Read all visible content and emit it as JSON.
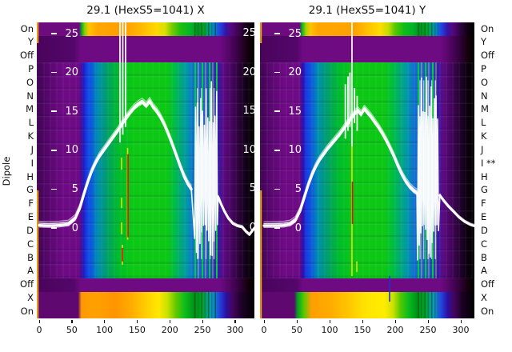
{
  "figure": {
    "titles": {
      "left": "29.1 (HexS5=1041) X",
      "right": "29.1 (HexS5=1041) Y"
    },
    "y_axis_label": "Dipole",
    "row_labels_left": [
      "On",
      "Y",
      "Off",
      "P",
      "O",
      "N",
      "M",
      "L",
      "K",
      "J",
      "I",
      "H",
      "G",
      "F",
      "E",
      "D",
      "C",
      "B",
      "A",
      "Off",
      "X",
      "On"
    ],
    "row_labels_right": [
      "On",
      "Y",
      "Off",
      "P",
      "O",
      "N",
      "M",
      "L",
      "K",
      "J",
      "I **",
      "H",
      "G",
      "F",
      "E",
      "D",
      "C",
      "B",
      "A",
      "Off",
      "X",
      "On"
    ],
    "x_tick_labels": [
      "0",
      "50",
      "100",
      "150",
      "200",
      "250",
      "300"
    ],
    "value_tick_labels": [
      "25",
      "20",
      "15",
      "10",
      "5",
      "0"
    ]
  },
  "colors": {
    "background": "#ffffff",
    "purple": "#6E0A84",
    "dark_purple": "#4A0560",
    "blue": "#1440E8",
    "teal": "#009898",
    "green": "#0CC814",
    "yellow": "#FFE000",
    "orange": "#FFA500",
    "curve_white": "#ffffff",
    "marker_red": "#DD1100",
    "marker_yellow": "#E8E000",
    "marker_blue": "#2233CC",
    "edge_line_orange": "#FFB400"
  },
  "chart_data": {
    "type": "heatmap",
    "x_range": [
      0,
      330
    ],
    "value_axis_ticks": [
      25,
      20,
      15,
      10,
      5,
      0
    ],
    "rows": [
      "On",
      "Y",
      "Off",
      "P",
      "O",
      "N",
      "M",
      "L",
      "K",
      "J",
      "I",
      "H",
      "G",
      "F",
      "E",
      "D",
      "C",
      "B",
      "A",
      "Off",
      "X",
      "On"
    ],
    "panels": [
      {
        "name": "X",
        "profile_x": [
          0,
          15,
          30,
          45,
          55,
          62,
          68,
          74,
          80,
          86,
          92,
          98,
          104,
          110,
          116,
          122,
          128,
          134,
          140,
          146,
          152,
          158,
          164,
          169,
          174,
          180,
          186,
          192,
          198,
          204,
          210,
          216,
          222,
          228,
          233
        ],
        "profile_v": [
          0.35,
          0.3,
          0.35,
          0.5,
          1.2,
          2.5,
          4.2,
          5.8,
          7.2,
          8.3,
          9.2,
          9.9,
          10.6,
          11.3,
          12.0,
          12.7,
          13.5,
          14.2,
          14.9,
          15.5,
          15.9,
          16.2,
          15.7,
          16.3,
          15.6,
          15.0,
          14.2,
          13.2,
          12.0,
          10.7,
          9.3,
          7.9,
          6.6,
          5.6,
          5.0
        ],
        "tail_x": [
          274,
          279,
          284,
          290,
          297,
          304,
          311,
          317,
          322,
          327,
          330
        ],
        "tail_v": [
          4.0,
          3.0,
          2.1,
          1.2,
          0.55,
          0.25,
          0.1,
          -0.5,
          -0.85,
          -0.3,
          0.0
        ],
        "spikes": [
          {
            "x": 123.7,
            "v": [
              11,
              27
            ]
          },
          {
            "x": 128,
            "v": [
              12,
              27
            ]
          },
          {
            "x": 132.3,
            "v": [
              13,
              27
            ]
          }
        ],
        "burst": {
          "x_range": [
            238,
            273
          ],
          "v_low": -4.5,
          "v_high": 19
        },
        "markers": [
          {
            "color": "#E8E000",
            "x": 135.4,
            "v": [
              -1.5,
              10.3
            ]
          },
          {
            "color": "#DD1100",
            "x": 136.0,
            "v": [
              -1.2,
              9.5
            ]
          },
          {
            "color": "#E8E000",
            "x": 126.2,
            "v": [
              7.5,
              9.05
            ]
          },
          {
            "color": "#E8E000",
            "x": 126.2,
            "v": [
              2.57,
              3.9
            ]
          },
          {
            "color": "#E8E000",
            "x": 126.2,
            "v": [
              -0.8,
              0.72
            ]
          },
          {
            "color": "#E8E000",
            "x": 127.4,
            "v": [
              -4.73,
              -2.16
            ]
          },
          {
            "color": "#DD1100",
            "x": 127.4,
            "v": [
              -4.3,
              -2.57
            ]
          }
        ]
      },
      {
        "name": "Y",
        "profile_x": [
          0,
          15,
          30,
          40,
          48,
          55,
          61,
          67,
          73,
          79,
          85,
          91,
          97,
          103,
          109,
          115,
          121,
          127,
          133,
          138,
          143,
          148,
          153,
          158,
          163,
          168,
          174,
          180,
          186,
          192,
          198,
          204,
          210,
          216,
          222,
          228,
          233
        ],
        "profile_v": [
          0.3,
          0.3,
          0.35,
          0.5,
          1.0,
          2.2,
          3.8,
          5.4,
          6.8,
          7.9,
          8.8,
          9.5,
          10.2,
          10.8,
          11.4,
          12.0,
          12.7,
          13.4,
          14.1,
          14.7,
          15.1,
          14.6,
          15.3,
          14.8,
          14.3,
          13.7,
          13.0,
          12.2,
          11.3,
          10.3,
          9.2,
          8.0,
          6.9,
          6.0,
          5.3,
          4.8,
          4.5
        ],
        "tail_x": [
          268,
          274,
          281,
          289,
          297,
          306,
          315,
          323,
          330
        ],
        "tail_v": [
          4.2,
          3.5,
          2.8,
          2.1,
          1.4,
          0.8,
          0.4,
          0.2,
          0.1
        ],
        "spikes": [
          {
            "x": 134.1,
            "v": [
              10.5,
              27
            ]
          },
          {
            "x": 124,
            "v": [
              11.5,
              18.5
            ]
          },
          {
            "x": 128,
            "v": [
              12.5,
              19.5
            ]
          },
          {
            "x": 131,
            "v": [
              13,
              20
            ]
          },
          {
            "x": 138,
            "v": [
              13.5,
              18
            ]
          },
          {
            "x": 142,
            "v": [
              12.5,
              17
            ]
          }
        ],
        "burst": {
          "x_range": [
            234,
            266
          ],
          "v_low": -4.5,
          "v_high": 20
        },
        "markers": [
          {
            "color": "#E8E000",
            "x": 134.1,
            "v": [
              -6.17,
              10.8
            ]
          },
          {
            "color": "#DD1100",
            "x": 134.8,
            "v": [
              0.51,
              5.97
            ]
          },
          {
            "color": "#E8E000",
            "x": 141.5,
            "v": [
              -5.66,
              -4.3
            ]
          },
          {
            "color": "#2233CC",
            "x": 191.5,
            "v": [
              -9.47,
              -6.17
            ]
          }
        ]
      }
    ]
  }
}
